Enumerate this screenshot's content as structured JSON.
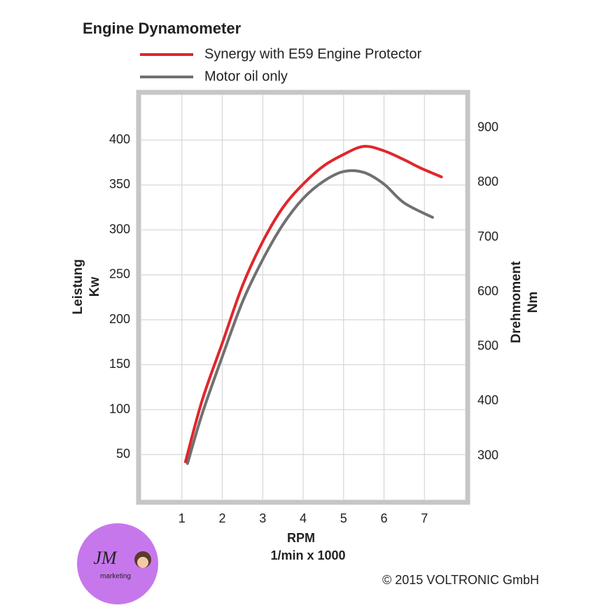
{
  "chart_data": {
    "type": "line",
    "title": "Engine Dynamometer",
    "ylabel": "Leistung",
    "ylabel_unit": "Kw",
    "y2label": "Drehmoment",
    "y2label_unit": "Nm",
    "xlabel": "RPM",
    "xlabel_unit": "1/min x 1000",
    "xlim": [
      0,
      8
    ],
    "xticks": [
      1,
      2,
      3,
      4,
      5,
      6,
      7
    ],
    "ylim": [
      0,
      450
    ],
    "yticks": [
      50,
      100,
      150,
      200,
      250,
      300,
      350,
      400
    ],
    "y2lim": [
      220,
      960
    ],
    "y2ticks": [
      300,
      400,
      500,
      600,
      700,
      800,
      900
    ],
    "grid": true,
    "series": [
      {
        "name": "Synergy with E59 Engine Protector",
        "color": "#e0262c",
        "x": [
          1.09,
          1.5,
          2,
          2.5,
          3,
          3.5,
          4,
          4.5,
          5,
          5.5,
          6,
          6.5,
          6.9,
          7.42
        ],
        "values": [
          42,
          110,
          174,
          238,
          287,
          325,
          351,
          371,
          384,
          393,
          388,
          378,
          369,
          359
        ]
      },
      {
        "name": "Motor oil only",
        "color": "#707070",
        "x": [
          1.14,
          1.5,
          2,
          2.5,
          3,
          3.5,
          4,
          4.5,
          5,
          5.5,
          6,
          6.5,
          7.2
        ],
        "values": [
          40,
          95,
          159,
          220,
          267,
          306,
          335,
          354,
          365,
          364,
          351,
          330,
          314
        ]
      }
    ]
  },
  "copyright": "© 2015 VOLTRONIC GmbH",
  "logo": {
    "text": "JM",
    "subtext": "marketing"
  }
}
